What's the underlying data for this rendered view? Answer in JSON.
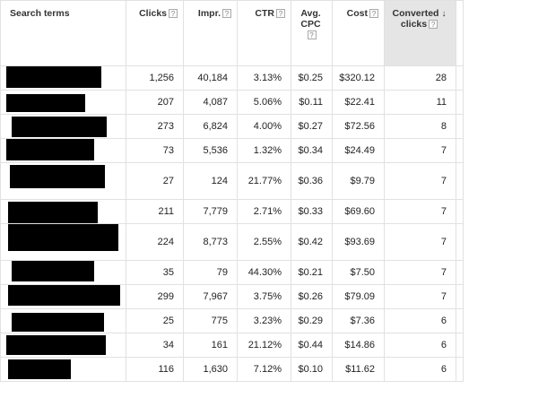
{
  "columns": {
    "search_terms": "Search terms",
    "clicks": "Clicks",
    "impr": "Impr.",
    "ctr": "CTR",
    "avg_cpc_line1": "Avg.",
    "avg_cpc_line2": "CPC",
    "cost": "Cost",
    "converted_line1": "Converted",
    "converted_line2": "clicks"
  },
  "help_glyph": "?",
  "sort_arrow": "🡓",
  "rows": [
    {
      "clicks": "1,256",
      "impr": "40,184",
      "ctr": "3.13%",
      "avg_cpc": "$0.25",
      "cost": "$320.12",
      "converted": "28"
    },
    {
      "clicks": "207",
      "impr": "4,087",
      "ctr": "5.06%",
      "avg_cpc": "$0.11",
      "cost": "$22.41",
      "converted": "11"
    },
    {
      "clicks": "273",
      "impr": "6,824",
      "ctr": "4.00%",
      "avg_cpc": "$0.27",
      "cost": "$72.56",
      "converted": "8"
    },
    {
      "clicks": "73",
      "impr": "5,536",
      "ctr": "1.32%",
      "avg_cpc": "$0.34",
      "cost": "$24.49",
      "converted": "7"
    },
    {
      "clicks": "27",
      "impr": "124",
      "ctr": "21.77%",
      "avg_cpc": "$0.36",
      "cost": "$9.79",
      "converted": "7"
    },
    {
      "clicks": "211",
      "impr": "7,779",
      "ctr": "2.71%",
      "avg_cpc": "$0.33",
      "cost": "$69.60",
      "converted": "7"
    },
    {
      "clicks": "224",
      "impr": "8,773",
      "ctr": "2.55%",
      "avg_cpc": "$0.42",
      "cost": "$93.69",
      "converted": "7"
    },
    {
      "clicks": "35",
      "impr": "79",
      "ctr": "44.30%",
      "avg_cpc": "$0.21",
      "cost": "$7.50",
      "converted": "7"
    },
    {
      "clicks": "299",
      "impr": "7,967",
      "ctr": "3.75%",
      "avg_cpc": "$0.26",
      "cost": "$79.09",
      "converted": "7"
    },
    {
      "clicks": "25",
      "impr": "775",
      "ctr": "3.23%",
      "avg_cpc": "$0.29",
      "cost": "$7.36",
      "converted": "6"
    },
    {
      "clicks": "34",
      "impr": "161",
      "ctr": "21.12%",
      "avg_cpc": "$0.44",
      "cost": "$14.86",
      "converted": "6"
    },
    {
      "clicks": "116",
      "impr": "1,630",
      "ctr": "7.12%",
      "avg_cpc": "$0.10",
      "cost": "$11.62",
      "converted": "6"
    }
  ]
}
